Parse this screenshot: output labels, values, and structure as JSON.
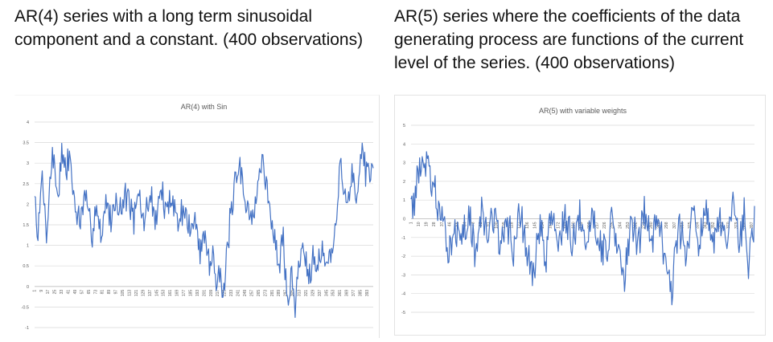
{
  "captions": {
    "left": "AR(4) series with a long term sinusoidal component and a constant. (400 observations)",
    "right": "AR(5) series where the coefficients of the data generating process are functions of the current level of the series. (400 observations)"
  },
  "colors": {
    "series": "#4472c4",
    "grid": "#d9d9d9",
    "axis_text": "#595959"
  },
  "chart_data": [
    {
      "type": "line",
      "title": "AR(4) with Sin",
      "xlabel": "",
      "ylabel": "",
      "ylim": [
        -1,
        4
      ],
      "yticks": [
        "-1",
        "-0.5",
        "0",
        "0.5",
        "1",
        "1.5",
        "2",
        "2.5",
        "3",
        "3.5",
        "4"
      ],
      "xtick_labels": [
        "1",
        "9",
        "17",
        "25",
        "33",
        "41",
        "49",
        "57",
        "65",
        "73",
        "81",
        "89",
        "97",
        "105",
        "113",
        "121",
        "129",
        "137",
        "145",
        "153",
        "161",
        "169",
        "177",
        "185",
        "193",
        "201",
        "209",
        "217",
        "225",
        "233",
        "241",
        "249",
        "257",
        "265",
        "273",
        "281",
        "289",
        "297",
        "305",
        "313",
        "321",
        "329",
        "337",
        "345",
        "353",
        "361",
        "369",
        "377",
        "385",
        "393"
      ],
      "grid": true,
      "legend": "none",
      "x_count": 400,
      "anchors": [
        [
          1,
          2.2
        ],
        [
          5,
          1.2
        ],
        [
          10,
          2.7
        ],
        [
          15,
          1.3
        ],
        [
          22,
          3.3
        ],
        [
          28,
          2.2
        ],
        [
          33,
          3.2
        ],
        [
          38,
          2.7
        ],
        [
          42,
          3.3
        ],
        [
          48,
          2.0
        ],
        [
          55,
          1.5
        ],
        [
          60,
          2.2
        ],
        [
          68,
          1.3
        ],
        [
          74,
          2.0
        ],
        [
          80,
          1.1
        ],
        [
          85,
          2.2
        ],
        [
          90,
          1.6
        ],
        [
          97,
          2.1
        ],
        [
          103,
          1.9
        ],
        [
          110,
          2.3
        ],
        [
          118,
          1.6
        ],
        [
          124,
          2.2
        ],
        [
          130,
          1.5
        ],
        [
          137,
          2.3
        ],
        [
          143,
          1.6
        ],
        [
          150,
          2.4
        ],
        [
          156,
          1.7
        ],
        [
          163,
          2.3
        ],
        [
          170,
          1.5
        ],
        [
          177,
          2.0
        ],
        [
          184,
          1.3
        ],
        [
          190,
          1.6
        ],
        [
          196,
          0.9
        ],
        [
          202,
          1.3
        ],
        [
          207,
          0.5
        ],
        [
          212,
          0.9
        ],
        [
          216,
          0.1
        ],
        [
          220,
          0.5
        ],
        [
          223,
          -0.5
        ],
        [
          226,
          0.2
        ],
        [
          229,
          1.2
        ],
        [
          233,
          1.8
        ],
        [
          238,
          2.5
        ],
        [
          243,
          2.9
        ],
        [
          248,
          2.2
        ],
        [
          253,
          2.0
        ],
        [
          258,
          1.5
        ],
        [
          263,
          2.3
        ],
        [
          268,
          3.1
        ],
        [
          272,
          2.7
        ],
        [
          276,
          2.3
        ],
        [
          280,
          1.5
        ],
        [
          285,
          1.0
        ],
        [
          290,
          0.5
        ],
        [
          294,
          1.2
        ],
        [
          297,
          0.2
        ],
        [
          301,
          -0.3
        ],
        [
          304,
          0.4
        ],
        [
          308,
          -0.6
        ],
        [
          312,
          0.5
        ],
        [
          317,
          1.0
        ],
        [
          321,
          0.7
        ],
        [
          325,
          0.3
        ],
        [
          330,
          0.9
        ],
        [
          335,
          0.5
        ],
        [
          340,
          0.9
        ],
        [
          345,
          0.5
        ],
        [
          352,
          0.8
        ],
        [
          358,
          1.9
        ],
        [
          361,
          3.3
        ],
        [
          365,
          2.4
        ],
        [
          370,
          2.0
        ],
        [
          376,
          2.7
        ],
        [
          381,
          2.2
        ],
        [
          386,
          3.3
        ],
        [
          391,
          2.9
        ],
        [
          396,
          2.4
        ],
        [
          400,
          2.8
        ]
      ],
      "volatility": 0.6,
      "seed": 7
    },
    {
      "type": "line",
      "title": "AR(5) with variable weights",
      "xlabel": "",
      "ylabel": "",
      "ylim": [
        -5,
        5
      ],
      "yticks": [
        "-5",
        "-4",
        "-3",
        "-2",
        "-1",
        "0",
        "1",
        "2",
        "3",
        "4",
        "5"
      ],
      "xtick_labels": [
        "1",
        "10",
        "19",
        "28",
        "37",
        "46",
        "55",
        "64",
        "73",
        "82",
        "91",
        "100",
        "109",
        "118",
        "127",
        "136",
        "145",
        "154",
        "163",
        "172",
        "181",
        "190",
        "199",
        "208",
        "217",
        "226",
        "235",
        "244",
        "253",
        "262",
        "271",
        "280",
        "289",
        "298",
        "307",
        "316",
        "325",
        "334",
        "343",
        "352",
        "361",
        "370",
        "379",
        "388",
        "397"
      ],
      "grid": true,
      "legend": "none",
      "x_count": 400,
      "anchors": [
        [
          1,
          1.5
        ],
        [
          4,
          0.6
        ],
        [
          8,
          2.0
        ],
        [
          12,
          3.2
        ],
        [
          16,
          2.4
        ],
        [
          20,
          3.0
        ],
        [
          24,
          2.3
        ],
        [
          28,
          1.5
        ],
        [
          32,
          0.5
        ],
        [
          38,
          -0.6
        ],
        [
          45,
          -1.5
        ],
        [
          52,
          -0.4
        ],
        [
          60,
          -1.3
        ],
        [
          68,
          0.1
        ],
        [
          75,
          -1.7
        ],
        [
          82,
          0.3
        ],
        [
          90,
          -1.0
        ],
        [
          98,
          0.6
        ],
        [
          105,
          -2.0
        ],
        [
          112,
          0.0
        ],
        [
          120,
          -1.6
        ],
        [
          128,
          0.3
        ],
        [
          136,
          -1.8
        ],
        [
          144,
          -3.0
        ],
        [
          150,
          -0.5
        ],
        [
          158,
          -1.8
        ],
        [
          165,
          0.4
        ],
        [
          172,
          -1.4
        ],
        [
          180,
          0.2
        ],
        [
          188,
          -1.7
        ],
        [
          196,
          0.1
        ],
        [
          204,
          -1.5
        ],
        [
          212,
          0.5
        ],
        [
          220,
          -1.2
        ],
        [
          228,
          -1.9
        ],
        [
          235,
          0.3
        ],
        [
          242,
          -1.6
        ],
        [
          249,
          -3.6
        ],
        [
          256,
          -0.2
        ],
        [
          264,
          -1.4
        ],
        [
          272,
          0.5
        ],
        [
          280,
          -1.3
        ],
        [
          288,
          0.2
        ],
        [
          296,
          -1.8
        ],
        [
          304,
          -3.6
        ],
        [
          312,
          -0.5
        ],
        [
          320,
          -1.6
        ],
        [
          328,
          0.3
        ],
        [
          336,
          -1.2
        ],
        [
          344,
          0.1
        ],
        [
          352,
          -1.6
        ],
        [
          360,
          -0.2
        ],
        [
          368,
          -1.4
        ],
        [
          376,
          0.8
        ],
        [
          382,
          -1.5
        ],
        [
          388,
          0.3
        ],
        [
          393,
          -2.5
        ],
        [
          397,
          -0.8
        ],
        [
          400,
          -0.5
        ]
      ],
      "volatility": 1.6,
      "seed": 13
    }
  ]
}
